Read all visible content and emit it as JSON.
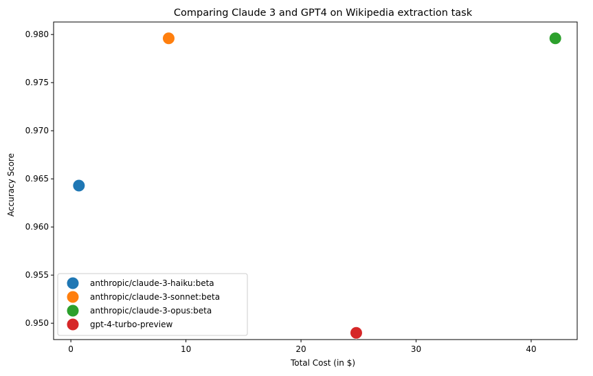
{
  "chart_data": {
    "type": "scatter",
    "title": "Comparing Claude 3 and GPT4 on Wikipedia extraction task",
    "xlabel": "Total Cost (in $)",
    "ylabel": "Accuracy Score",
    "xlim": [
      -1.5,
      44
    ],
    "ylim": [
      0.9483,
      0.9813
    ],
    "xticks": [
      0,
      10,
      20,
      30,
      40
    ],
    "yticks": [
      0.95,
      0.955,
      0.96,
      0.965,
      0.97,
      0.975,
      0.98
    ],
    "xtick_labels": [
      "0",
      "10",
      "20",
      "30",
      "40"
    ],
    "ytick_labels": [
      "0.950",
      "0.955",
      "0.960",
      "0.965",
      "0.970",
      "0.975",
      "0.980"
    ],
    "grid": false,
    "legend_position": "lower-left",
    "series": [
      {
        "name": "anthropic/claude-3-haiku:beta",
        "color": "#1f77b4",
        "x": [
          0.7
        ],
        "y": [
          0.9643
        ]
      },
      {
        "name": "anthropic/claude-3-sonnet:beta",
        "color": "#ff7f0e",
        "x": [
          8.5
        ],
        "y": [
          0.9796
        ]
      },
      {
        "name": "anthropic/claude-3-opus:beta",
        "color": "#2ca02c",
        "x": [
          42.1
        ],
        "y": [
          0.9796
        ]
      },
      {
        "name": "gpt-4-turbo-preview",
        "color": "#d62728",
        "x": [
          24.8
        ],
        "y": [
          0.949
        ]
      }
    ]
  }
}
